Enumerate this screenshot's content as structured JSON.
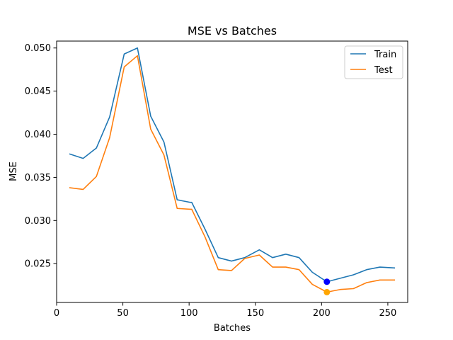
{
  "chart_data": {
    "type": "line",
    "title": "MSE vs Batches",
    "xlabel": "Batches",
    "ylabel": "MSE",
    "xlim": [
      0,
      265
    ],
    "ylim": [
      0.0205,
      0.0508
    ],
    "xticks": [
      0,
      50,
      100,
      150,
      200,
      250
    ],
    "yticks": [
      0.025,
      0.03,
      0.035,
      0.04,
      0.045,
      0.05
    ],
    "ytick_labels": [
      "0.025",
      "0.030",
      "0.035",
      "0.040",
      "0.045",
      "0.050"
    ],
    "grid": false,
    "legend_position": "top-right",
    "series": [
      {
        "name": "Train",
        "color": "#1f77b4",
        "x": [
          10,
          20,
          30,
          40,
          51,
          61,
          71,
          81,
          91,
          101,
          102,
          112,
          122,
          132,
          142,
          153,
          163,
          173,
          183,
          193,
          204,
          214,
          224,
          234,
          244,
          255
        ],
        "y": [
          0.0377,
          0.0372,
          0.0384,
          0.042,
          0.0493,
          0.05,
          0.0421,
          0.0391,
          0.0324,
          0.0321,
          0.0321,
          0.029,
          0.0257,
          0.0253,
          0.0257,
          0.0266,
          0.0257,
          0.0261,
          0.0257,
          0.024,
          0.0229,
          0.0233,
          0.0237,
          0.0243,
          0.0246,
          0.0245
        ],
        "best": {
          "x": 204,
          "y": 0.0229,
          "color": "#0000ff"
        }
      },
      {
        "name": "Test",
        "color": "#ff7f0e",
        "x": [
          10,
          20,
          30,
          40,
          51,
          61,
          71,
          81,
          91,
          101,
          102,
          112,
          122,
          132,
          142,
          153,
          163,
          173,
          183,
          193,
          204,
          214,
          224,
          234,
          244,
          255
        ],
        "y": [
          0.0338,
          0.0336,
          0.0351,
          0.0396,
          0.0478,
          0.0491,
          0.0406,
          0.0376,
          0.0314,
          0.0313,
          0.0313,
          0.0281,
          0.0243,
          0.0242,
          0.0256,
          0.026,
          0.0246,
          0.0246,
          0.0243,
          0.0226,
          0.0217,
          0.022,
          0.0221,
          0.0228,
          0.0231,
          0.0231
        ],
        "best": {
          "x": 204,
          "y": 0.0217,
          "color": "#ffa500"
        }
      }
    ]
  }
}
